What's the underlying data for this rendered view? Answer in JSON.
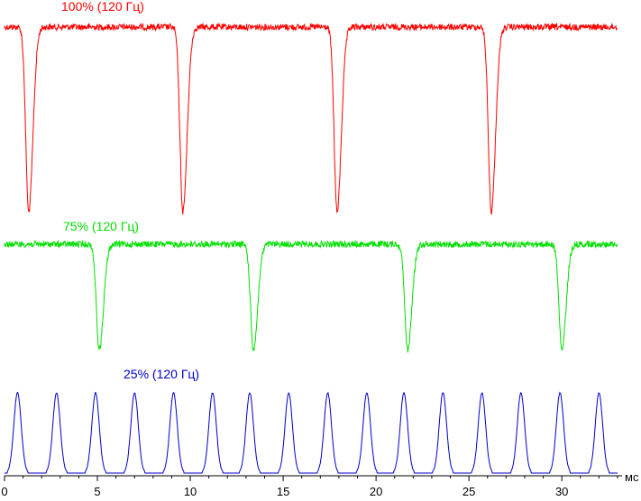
{
  "chart_data": {
    "type": "line",
    "x_unit": "мс",
    "xlim": [
      0,
      33
    ],
    "x_ticks": [
      "0",
      "5",
      "10",
      "15",
      "20",
      "25",
      "30"
    ],
    "grid": false,
    "series": [
      {
        "name": "100% (120 Гц)",
        "color": "#ff0000",
        "description_values": {
          "baseline_level": 1.0,
          "dip_min_level": 0.0,
          "dip_times_ms": [
            1.3,
            9.6,
            17.9,
            26.2
          ]
        }
      },
      {
        "name": "75% (120 Гц)",
        "color": "#00e000",
        "description_values": {
          "baseline_level": 1.0,
          "dip_min_level": 0.0,
          "dip_times_ms": [
            5.1,
            13.4,
            21.7,
            30.0
          ]
        }
      },
      {
        "name": "25% (120 Гц)",
        "color": "#0000cc",
        "description_values": {
          "baseline_level": 0.0,
          "pulse_peak_level": 1.0,
          "pulse_times_ms": [
            0.7,
            2.8,
            4.9,
            7.0,
            9.1,
            11.2,
            13.2,
            15.3,
            17.4,
            19.5,
            21.5,
            23.6,
            25.7,
            27.8,
            29.9,
            32.0
          ]
        }
      }
    ]
  }
}
